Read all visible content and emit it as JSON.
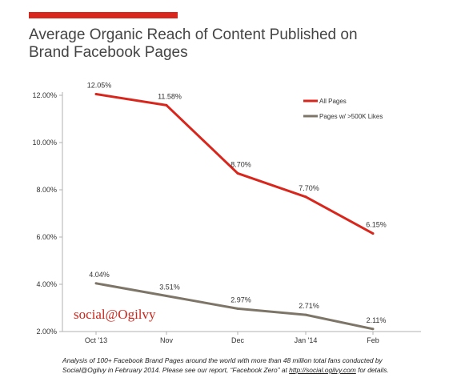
{
  "brand": {
    "accent_color": "#d9261c",
    "logo_text": "social@Ogilvy"
  },
  "title": {
    "line1": "Average Organic Reach of Content Published on",
    "line2": "Brand Facebook Pages"
  },
  "footnote": {
    "line1": "Analysis of 100+ Facebook Brand Pages around the world with more than 48 million total fans conducted by",
    "line2_before_link": "Social@Ogilvy in February 2014. Please see our report, “Facebook Zero” at ",
    "link_text": "http://social.ogilvy.com",
    "line2_after_link": " for details."
  },
  "chart_data": {
    "type": "line",
    "categories": [
      "Oct '13",
      "Nov",
      "Dec",
      "Jan '14",
      "Feb"
    ],
    "ylim": [
      2,
      12
    ],
    "yticks": [
      "2.00%",
      "4.00%",
      "6.00%",
      "8.00%",
      "10.00%",
      "12.00%"
    ],
    "ytick_values": [
      2,
      4,
      6,
      8,
      10,
      12
    ],
    "legend_position": "top-right",
    "grid": false,
    "series": [
      {
        "name": "All Pages",
        "color": "#d9261c",
        "values": [
          12.05,
          11.58,
          8.7,
          7.7,
          6.15
        ],
        "labels": [
          "12.05%",
          "11.58%",
          "8.70%",
          "7.70%",
          "6.15%"
        ]
      },
      {
        "name": "Pages w/ >500K Likes",
        "color": "#7d7568",
        "values": [
          4.04,
          3.51,
          2.97,
          2.71,
          2.11
        ],
        "labels": [
          "4.04%",
          "3.51%",
          "2.97%",
          "2.71%",
          "2.11%"
        ]
      }
    ]
  }
}
